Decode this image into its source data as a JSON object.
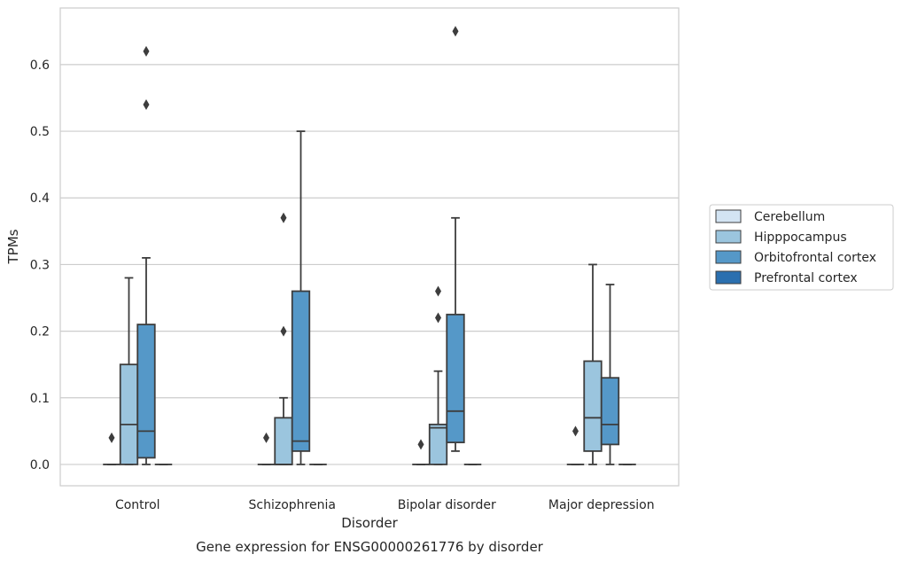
{
  "chart_data": {
    "type": "box",
    "title": "Gene expression for ENSG00000261776 by disorder",
    "xlabel": "Disorder",
    "ylabel": "TPMs",
    "ylim": [
      -0.032,
      0.685
    ],
    "yticks": [
      "0.0",
      "0.1",
      "0.2",
      "0.3",
      "0.4",
      "0.5",
      "0.6"
    ],
    "grid": true,
    "legend_position": "right",
    "categories": [
      "Control",
      "Schizophrenia",
      "Bipolar disorder",
      "Major depression"
    ],
    "series": [
      {
        "name": "Cerebellum",
        "color": "#d3e4f3",
        "boxes": [
          {
            "min": 0,
            "q1": 0,
            "median": 0,
            "q3": 0,
            "max": 0,
            "outliers": [
              0.04
            ]
          },
          {
            "min": 0,
            "q1": 0,
            "median": 0,
            "q3": 0,
            "max": 0,
            "outliers": [
              0.04
            ]
          },
          {
            "min": 0,
            "q1": 0,
            "median": 0,
            "q3": 0,
            "max": 0,
            "outliers": [
              0.03
            ]
          },
          {
            "min": 0,
            "q1": 0,
            "median": 0,
            "q3": 0,
            "max": 0,
            "outliers": [
              0.05
            ]
          }
        ]
      },
      {
        "name": "Hipppocampus",
        "color": "#9bc5de",
        "boxes": [
          {
            "min": 0,
            "q1": 0,
            "median": 0.06,
            "q3": 0.15,
            "max": 0.28,
            "outliers": []
          },
          {
            "min": 0,
            "q1": 0,
            "median": 0,
            "q3": 0.07,
            "max": 0.1,
            "outliers": [
              0.2,
              0.37
            ]
          },
          {
            "min": 0,
            "q1": 0,
            "median": 0.055,
            "q3": 0.06,
            "max": 0.14,
            "outliers": [
              0.22,
              0.26
            ]
          },
          {
            "min": 0,
            "q1": 0.02,
            "median": 0.07,
            "q3": 0.155,
            "max": 0.3,
            "outliers": []
          }
        ]
      },
      {
        "name": "Orbitofrontal cortex",
        "color": "#5598c8",
        "boxes": [
          {
            "min": 0,
            "q1": 0.01,
            "median": 0.05,
            "q3": 0.21,
            "max": 0.31,
            "outliers": [
              0.54,
              0.62
            ]
          },
          {
            "min": 0,
            "q1": 0.02,
            "median": 0.035,
            "q3": 0.26,
            "max": 0.5,
            "outliers": []
          },
          {
            "min": 0.02,
            "q1": 0.033,
            "median": 0.08,
            "q3": 0.225,
            "max": 0.37,
            "outliers": [
              0.65
            ]
          },
          {
            "min": 0,
            "q1": 0.03,
            "median": 0.06,
            "q3": 0.13,
            "max": 0.27,
            "outliers": []
          }
        ]
      },
      {
        "name": "Prefrontal cortex",
        "color": "#2a6faf",
        "boxes": [
          {
            "min": 0,
            "q1": 0,
            "median": 0,
            "q3": 0,
            "max": 0,
            "outliers": []
          },
          {
            "min": 0,
            "q1": 0,
            "median": 0,
            "q3": 0,
            "max": 0,
            "outliers": []
          },
          {
            "min": 0,
            "q1": 0,
            "median": 0,
            "q3": 0,
            "max": 0,
            "outliers": []
          },
          {
            "min": 0,
            "q1": 0,
            "median": 0,
            "q3": 0,
            "max": 0,
            "outliers": []
          }
        ]
      }
    ]
  }
}
